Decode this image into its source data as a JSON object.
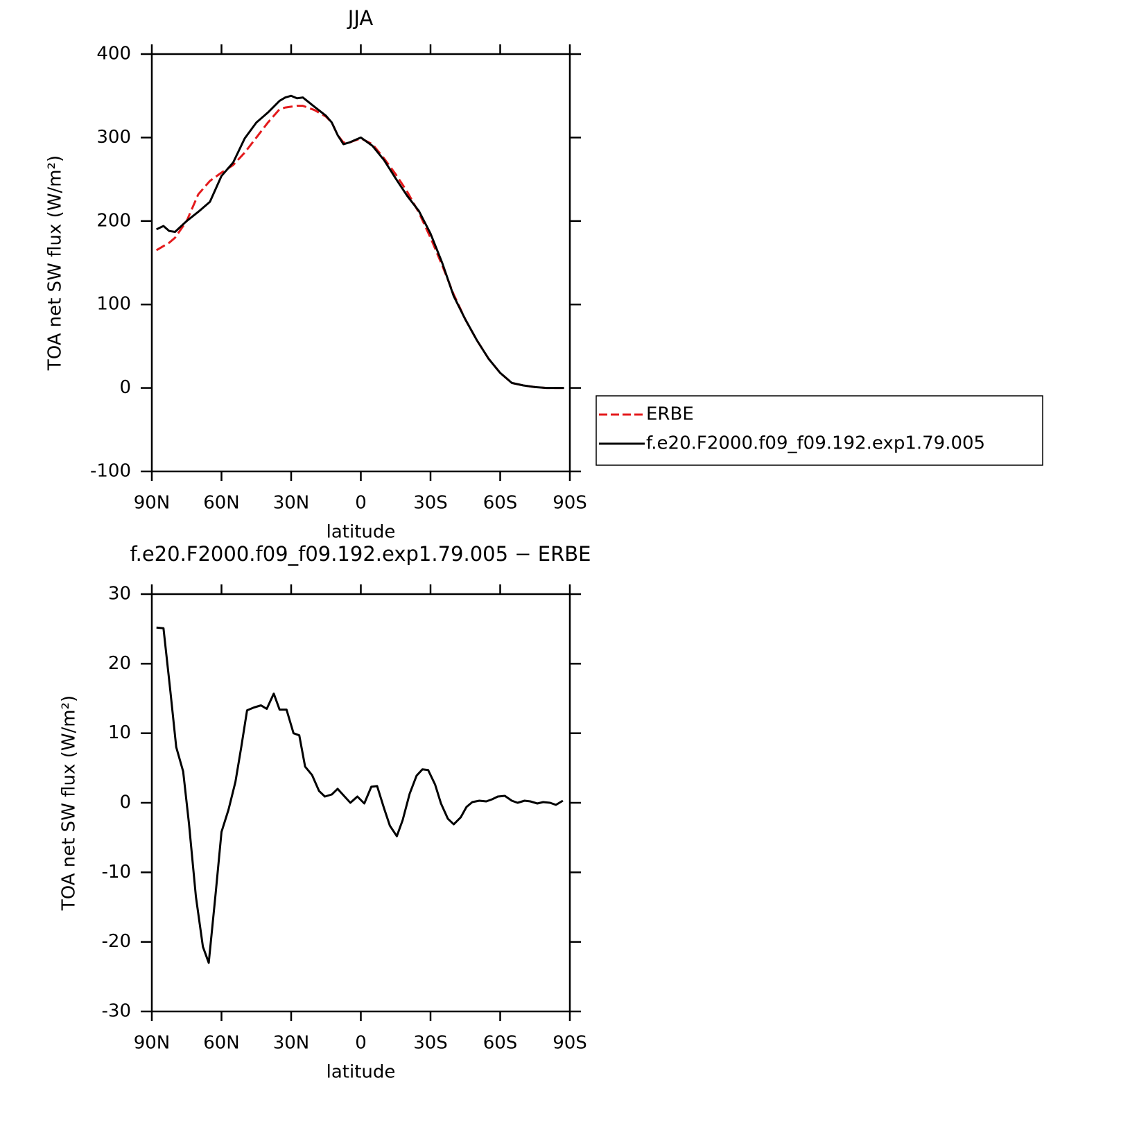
{
  "chart_data": [
    {
      "type": "line",
      "title": "JJA",
      "xlabel": "latitude",
      "ylabel": "TOA net SW flux (W/m²)",
      "x": [
        88,
        85,
        82.5,
        80,
        75,
        70,
        65,
        60,
        55,
        50,
        45,
        40,
        35,
        32.5,
        30,
        27.5,
        25,
        20,
        15,
        12.5,
        10,
        7.5,
        5,
        0,
        -5,
        -10,
        -15,
        -20,
        -25,
        -30,
        -35,
        -40,
        -45,
        -50,
        -55,
        -60,
        -65,
        -70,
        -75,
        -80,
        -85,
        -87.5
      ],
      "series": [
        {
          "name": "ERBE",
          "color": "#e41a1c",
          "dash": "dashed",
          "values": [
            165,
            170,
            174,
            180,
            200,
            232,
            248,
            258,
            267,
            282,
            300,
            318,
            334,
            336,
            337,
            338,
            338,
            333,
            325,
            318,
            303,
            294,
            294,
            299,
            292,
            275,
            256,
            235,
            210,
            180,
            147,
            112,
            82,
            57,
            35,
            18,
            6,
            3,
            1,
            0,
            0,
            0
          ]
        },
        {
          "name": "f.e20.F2000.f09_f09.192.exp1.79.005",
          "color": "#000000",
          "dash": "solid",
          "values": [
            190,
            194,
            188,
            187,
            200,
            211,
            223,
            254,
            270,
            299,
            318,
            330,
            344,
            348,
            350,
            347,
            348,
            337,
            326,
            318,
            303,
            292,
            294,
            300,
            290,
            273,
            251,
            230,
            212,
            185,
            150,
            110,
            82,
            57,
            35,
            18,
            6,
            3,
            1,
            0,
            0,
            0
          ]
        }
      ],
      "xlim": [
        90,
        -90
      ],
      "xticks": [
        {
          "value": 90,
          "label": "90N"
        },
        {
          "value": 60,
          "label": "60N"
        },
        {
          "value": 30,
          "label": "30N"
        },
        0,
        {
          "value": -30,
          "label": "30S"
        },
        {
          "value": -60,
          "label": "60S"
        },
        {
          "value": -90,
          "label": "90S"
        }
      ],
      "ylim": [
        -100,
        400
      ],
      "yticks": [
        -100,
        0,
        100,
        200,
        300,
        400
      ],
      "legend": "right"
    },
    {
      "type": "line",
      "title": "f.e20.F2000.f09_f09.192.exp1.79.005 − ERBE",
      "xlabel": "latitude",
      "ylabel": "TOA net SW flux (W/m²)",
      "x": [
        88,
        85,
        82,
        79.5,
        76.5,
        74,
        71,
        68,
        65.5,
        62.5,
        60,
        57,
        54,
        51.5,
        49,
        46,
        43,
        40.5,
        37.5,
        35,
        32,
        29,
        26.5,
        24,
        21,
        18,
        15.5,
        12.5,
        10,
        7,
        4.5,
        1.5,
        -1.5,
        -4.5,
        -7,
        -10,
        -12.5,
        -15.5,
        -18,
        -21,
        -24,
        -26.5,
        -29,
        -32,
        -34.5,
        -37.5,
        -40,
        -43,
        -45.5,
        -48,
        -51,
        -54,
        -56.5,
        -59,
        -62,
        -65,
        -67.5,
        -70.5,
        -73,
        -76,
        -78.5,
        -81.5,
        -84,
        -87
      ],
      "values": [
        25.2,
        25.1,
        16,
        8,
        4.5,
        -3,
        -13.5,
        -20.7,
        -23,
        -13,
        -4.2,
        -1,
        3,
        8,
        13.3,
        13.7,
        14,
        13.5,
        15.7,
        13.4,
        13.4,
        10,
        9.7,
        5.2,
        4,
        1.7,
        0.9,
        1.2,
        2,
        0.9,
        0,
        0.9,
        -0.1,
        2.3,
        2.4,
        -0.8,
        -3.3,
        -4.8,
        -2.5,
        1.3,
        3.9,
        4.8,
        4.7,
        2.6,
        -0.1,
        -2.3,
        -3.1,
        -2.1,
        -0.6,
        0.1,
        0.3,
        0.2,
        0.5,
        0.9,
        1,
        0.3,
        0,
        0.3,
        0.2,
        -0.1,
        0.1,
        0,
        -0.3,
        0.3
      ],
      "color": "#000000",
      "xlim": [
        90,
        -90
      ],
      "xticks": [
        {
          "value": 90,
          "label": "90N"
        },
        {
          "value": 60,
          "label": "60N"
        },
        {
          "value": 30,
          "label": "30N"
        },
        0,
        {
          "value": -30,
          "label": "30S"
        },
        {
          "value": -60,
          "label": "60S"
        },
        {
          "value": -90,
          "label": "90S"
        }
      ],
      "ylim": [
        -30,
        30
      ],
      "yticks": [
        -30,
        -20,
        -10,
        0,
        10,
        20,
        30
      ]
    }
  ]
}
